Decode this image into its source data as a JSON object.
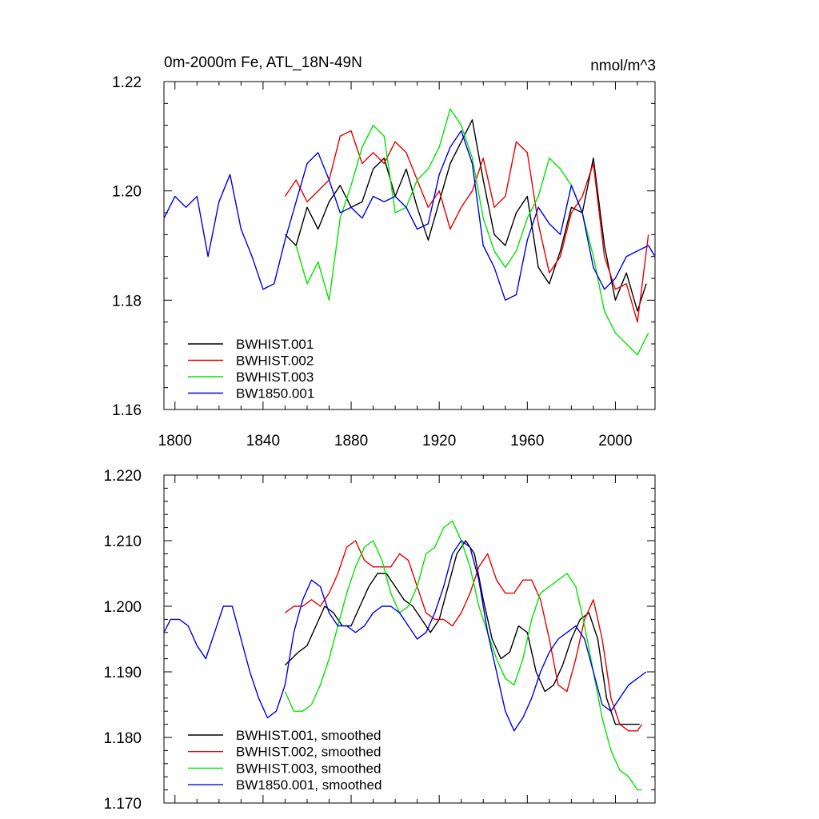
{
  "colors": {
    "black": "#000000",
    "red": "#e60000",
    "green": "#00e600",
    "blue": "#0000e6"
  },
  "chart_data": [
    {
      "type": "line",
      "title": "0m-2000m Fe, ATL_18N-49N",
      "units": "nmol/m^3",
      "xlim": [
        1795,
        2018
      ],
      "ylim": [
        1.16,
        1.22
      ],
      "xticks": [
        1800,
        1840,
        1880,
        1920,
        1960,
        2000
      ],
      "xtick_labels": [
        "1800",
        "1840",
        "1880",
        "1920",
        "1960",
        "2000"
      ],
      "yticks": [
        1.16,
        1.18,
        1.2,
        1.22
      ],
      "ytick_labels": [
        "1.16",
        "1.18",
        "1.20",
        "1.22"
      ],
      "legend": [
        "BWHIST.001",
        "BWHIST.002",
        "BWHIST.003",
        "BW1850.001"
      ],
      "series": [
        {
          "name": "BWHIST.001",
          "color": "black",
          "x": [
            1850,
            1855,
            1860,
            1865,
            1870,
            1875,
            1880,
            1885,
            1890,
            1895,
            1900,
            1905,
            1910,
            1915,
            1920,
            1925,
            1930,
            1935,
            1940,
            1945,
            1950,
            1955,
            1960,
            1965,
            1970,
            1975,
            1980,
            1985,
            1990,
            1995,
            2000,
            2005,
            2010,
            2014
          ],
          "y": [
            1.192,
            1.19,
            1.197,
            1.193,
            1.198,
            1.201,
            1.197,
            1.198,
            1.204,
            1.206,
            1.199,
            1.204,
            1.197,
            1.191,
            1.198,
            1.205,
            1.209,
            1.213,
            1.202,
            1.192,
            1.19,
            1.196,
            1.199,
            1.186,
            1.183,
            1.189,
            1.197,
            1.196,
            1.206,
            1.19,
            1.18,
            1.185,
            1.178,
            1.183
          ]
        },
        {
          "name": "BWHIST.002",
          "color": "red",
          "x": [
            1850,
            1855,
            1860,
            1865,
            1870,
            1875,
            1880,
            1885,
            1890,
            1895,
            1900,
            1905,
            1910,
            1915,
            1920,
            1925,
            1930,
            1935,
            1940,
            1945,
            1950,
            1955,
            1960,
            1965,
            1970,
            1975,
            1980,
            1985,
            1990,
            1995,
            2000,
            2005,
            2010,
            2015
          ],
          "y": [
            1.199,
            1.202,
            1.198,
            1.2,
            1.202,
            1.21,
            1.211,
            1.205,
            1.207,
            1.205,
            1.209,
            1.207,
            1.202,
            1.197,
            1.2,
            1.193,
            1.197,
            1.2,
            1.206,
            1.197,
            1.199,
            1.209,
            1.207,
            1.194,
            1.185,
            1.188,
            1.196,
            1.199,
            1.205,
            1.188,
            1.182,
            1.183,
            1.176,
            1.192
          ]
        },
        {
          "name": "BWHIST.003",
          "color": "green",
          "x": [
            1855,
            1860,
            1865,
            1870,
            1875,
            1880,
            1885,
            1890,
            1895,
            1900,
            1905,
            1910,
            1915,
            1920,
            1925,
            1930,
            1935,
            1940,
            1945,
            1950,
            1955,
            1960,
            1965,
            1970,
            1975,
            1980,
            1985,
            1990,
            1995,
            2000,
            2005,
            2010,
            2015
          ],
          "y": [
            1.19,
            1.183,
            1.187,
            1.18,
            1.195,
            1.201,
            1.208,
            1.212,
            1.21,
            1.196,
            1.197,
            1.202,
            1.204,
            1.208,
            1.215,
            1.212,
            1.206,
            1.195,
            1.189,
            1.186,
            1.189,
            1.195,
            1.199,
            1.206,
            1.204,
            1.201,
            1.196,
            1.188,
            1.178,
            1.174,
            1.172,
            1.17,
            1.174
          ]
        },
        {
          "name": "BW1850.001",
          "color": "blue",
          "x": [
            1795,
            1800,
            1805,
            1810,
            1815,
            1820,
            1825,
            1830,
            1835,
            1840,
            1845,
            1850,
            1855,
            1860,
            1865,
            1870,
            1875,
            1880,
            1885,
            1890,
            1895,
            1900,
            1905,
            1910,
            1915,
            1920,
            1925,
            1930,
            1935,
            1940,
            1945,
            1950,
            1955,
            1960,
            1965,
            1970,
            1975,
            1980,
            1985,
            1990,
            1995,
            2000,
            2005,
            2010,
            2015,
            2018
          ],
          "y": [
            1.195,
            1.199,
            1.197,
            1.199,
            1.188,
            1.198,
            1.203,
            1.193,
            1.188,
            1.182,
            1.183,
            1.191,
            1.198,
            1.205,
            1.207,
            1.202,
            1.196,
            1.197,
            1.195,
            1.199,
            1.198,
            1.199,
            1.197,
            1.193,
            1.194,
            1.203,
            1.208,
            1.211,
            1.205,
            1.19,
            1.186,
            1.18,
            1.181,
            1.191,
            1.197,
            1.194,
            1.192,
            1.201,
            1.196,
            1.186,
            1.182,
            1.184,
            1.188,
            1.189,
            1.19,
            1.188
          ]
        }
      ]
    },
    {
      "type": "line",
      "title": "",
      "xlim": [
        1795,
        2018
      ],
      "ylim": [
        1.17,
        1.22
      ],
      "xticks": [
        1800,
        1840,
        1880,
        1920,
        1960,
        2000
      ],
      "yticks": [
        1.17,
        1.18,
        1.19,
        1.2,
        1.21,
        1.22
      ],
      "ytick_labels": [
        "1.170",
        "1.180",
        "1.190",
        "1.200",
        "1.210",
        "1.220"
      ],
      "legend": [
        "BWHIST.001, smoothed",
        "BWHIST.002, smoothed",
        "BWHIST.003, smoothed",
        "BW1850.001, smoothed"
      ],
      "series": [
        {
          "name": "BWHIST.001, smoothed",
          "color": "black",
          "x": [
            1850,
            1853,
            1856,
            1860,
            1864,
            1868,
            1872,
            1876,
            1880,
            1884,
            1888,
            1892,
            1896,
            1900,
            1904,
            1908,
            1912,
            1916,
            1920,
            1924,
            1928,
            1932,
            1936,
            1940,
            1944,
            1948,
            1952,
            1956,
            1960,
            1964,
            1968,
            1972,
            1976,
            1980,
            1984,
            1988,
            1992,
            1996,
            2000,
            2004,
            2008,
            2011
          ],
          "y": [
            1.191,
            1.192,
            1.193,
            1.194,
            1.197,
            1.2,
            1.199,
            1.197,
            1.197,
            1.2,
            1.203,
            1.205,
            1.205,
            1.203,
            1.201,
            1.2,
            1.198,
            1.196,
            1.198,
            1.203,
            1.208,
            1.21,
            1.208,
            1.201,
            1.195,
            1.192,
            1.193,
            1.197,
            1.196,
            1.19,
            1.187,
            1.188,
            1.191,
            1.195,
            1.198,
            1.199,
            1.195,
            1.186,
            1.182,
            1.182,
            1.182,
            1.182
          ]
        },
        {
          "name": "BWHIST.002, smoothed",
          "color": "red",
          "x": [
            1850,
            1854,
            1858,
            1862,
            1866,
            1870,
            1874,
            1878,
            1882,
            1886,
            1890,
            1894,
            1898,
            1902,
            1906,
            1910,
            1914,
            1918,
            1922,
            1926,
            1930,
            1934,
            1938,
            1942,
            1946,
            1950,
            1954,
            1958,
            1962,
            1966,
            1970,
            1974,
            1978,
            1982,
            1986,
            1990,
            1994,
            1998,
            2002,
            2006,
            2010,
            2012
          ],
          "y": [
            1.199,
            1.2,
            1.2,
            1.201,
            1.2,
            1.202,
            1.205,
            1.209,
            1.21,
            1.207,
            1.206,
            1.206,
            1.206,
            1.208,
            1.207,
            1.203,
            1.199,
            1.198,
            1.198,
            1.197,
            1.199,
            1.202,
            1.206,
            1.208,
            1.204,
            1.202,
            1.202,
            1.204,
            1.204,
            1.201,
            1.195,
            1.188,
            1.187,
            1.192,
            1.198,
            1.201,
            1.195,
            1.186,
            1.182,
            1.181,
            1.181,
            1.182
          ]
        },
        {
          "name": "BWHIST.003, smoothed",
          "color": "green",
          "x": [
            1850,
            1854,
            1858,
            1862,
            1866,
            1870,
            1874,
            1878,
            1882,
            1886,
            1890,
            1894,
            1898,
            1902,
            1906,
            1910,
            1914,
            1918,
            1922,
            1926,
            1930,
            1934,
            1938,
            1942,
            1946,
            1950,
            1954,
            1958,
            1962,
            1966,
            1970,
            1974,
            1978,
            1982,
            1986,
            1990,
            1994,
            1998,
            2002,
            2006,
            2010,
            2012
          ],
          "y": [
            1.187,
            1.184,
            1.184,
            1.185,
            1.188,
            1.192,
            1.197,
            1.202,
            1.206,
            1.209,
            1.21,
            1.207,
            1.202,
            1.199,
            1.2,
            1.203,
            1.208,
            1.209,
            1.212,
            1.213,
            1.21,
            1.206,
            1.2,
            1.196,
            1.192,
            1.189,
            1.188,
            1.192,
            1.198,
            1.202,
            1.203,
            1.204,
            1.205,
            1.203,
            1.197,
            1.19,
            1.183,
            1.178,
            1.175,
            1.174,
            1.172,
            1.172
          ]
        },
        {
          "name": "BW1850.001, smoothed",
          "color": "blue",
          "x": [
            1795,
            1798,
            1802,
            1806,
            1810,
            1814,
            1818,
            1822,
            1826,
            1830,
            1834,
            1838,
            1842,
            1846,
            1850,
            1854,
            1858,
            1862,
            1866,
            1870,
            1874,
            1878,
            1882,
            1886,
            1890,
            1894,
            1898,
            1902,
            1906,
            1910,
            1914,
            1918,
            1922,
            1926,
            1930,
            1934,
            1938,
            1942,
            1946,
            1950,
            1954,
            1958,
            1962,
            1966,
            1970,
            1974,
            1978,
            1982,
            1986,
            1990,
            1994,
            1998,
            2002,
            2006,
            2010,
            2014
          ],
          "y": [
            1.196,
            1.198,
            1.198,
            1.197,
            1.194,
            1.192,
            1.196,
            1.2,
            1.2,
            1.195,
            1.19,
            1.186,
            1.183,
            1.184,
            1.188,
            1.196,
            1.201,
            1.204,
            1.203,
            1.199,
            1.197,
            1.197,
            1.196,
            1.197,
            1.199,
            1.2,
            1.2,
            1.199,
            1.197,
            1.195,
            1.196,
            1.199,
            1.203,
            1.208,
            1.21,
            1.209,
            1.204,
            1.196,
            1.19,
            1.184,
            1.181,
            1.183,
            1.186,
            1.19,
            1.193,
            1.195,
            1.196,
            1.197,
            1.195,
            1.19,
            1.185,
            1.184,
            1.186,
            1.188,
            1.189,
            1.19
          ]
        }
      ]
    }
  ]
}
